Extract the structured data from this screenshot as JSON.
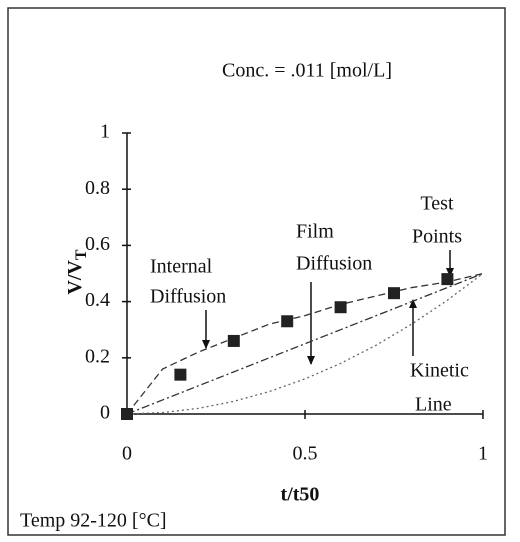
{
  "chart_data": {
    "type": "scatter",
    "title": "Conc. = .011 [mol/L]",
    "xlabel": "t/t50",
    "ylabel": {
      "main": "V/V",
      "sub": "T"
    },
    "footer": "Temp 92-120 [°C]",
    "xlim": [
      0,
      1
    ],
    "ylim": [
      0,
      1
    ],
    "xticks": [
      0,
      0.5,
      1
    ],
    "yticks": [
      0,
      0.2,
      0.4,
      0.6,
      0.8,
      1
    ],
    "points": {
      "x": [
        0,
        0.15,
        0.3,
        0.45,
        0.6,
        0.75,
        0.9
      ],
      "values": [
        0,
        0.14,
        0.26,
        0.33,
        0.38,
        0.43,
        0.48
      ],
      "color": "#222222"
    },
    "lines": [
      {
        "style": "dashed",
        "color": "#333333",
        "x": [
          0,
          0.1,
          0.2,
          0.3,
          0.4,
          0.5,
          0.6,
          0.7,
          0.8,
          0.9,
          1
        ],
        "values": [
          0,
          0.16,
          0.22,
          0.27,
          0.32,
          0.35,
          0.39,
          0.42,
          0.45,
          0.47,
          0.5
        ]
      },
      {
        "style": "dashdot",
        "color": "#333333",
        "x": [
          0,
          0.1,
          0.2,
          0.3,
          0.4,
          0.5,
          0.6,
          0.7,
          0.8,
          0.9,
          1
        ],
        "values": [
          0,
          0.05,
          0.1,
          0.15,
          0.2,
          0.25,
          0.3,
          0.35,
          0.4,
          0.45,
          0.5
        ]
      },
      {
        "style": "dotted",
        "color": "#666666",
        "x": [
          0,
          0.1,
          0.2,
          0.3,
          0.4,
          0.5,
          0.6,
          0.7,
          0.8,
          0.9,
          1
        ],
        "values": [
          0,
          0.005,
          0.02,
          0.045,
          0.08,
          0.125,
          0.18,
          0.245,
          0.32,
          0.405,
          0.5
        ]
      }
    ],
    "annotations": [
      {
        "text": [
          "Test",
          "Points"
        ]
      },
      {
        "text": [
          "Internal",
          "Diffusion"
        ]
      },
      {
        "text": [
          "Film",
          "Diffusion"
        ]
      },
      {
        "text": [
          "Kinetic",
          "Line"
        ]
      }
    ]
  }
}
